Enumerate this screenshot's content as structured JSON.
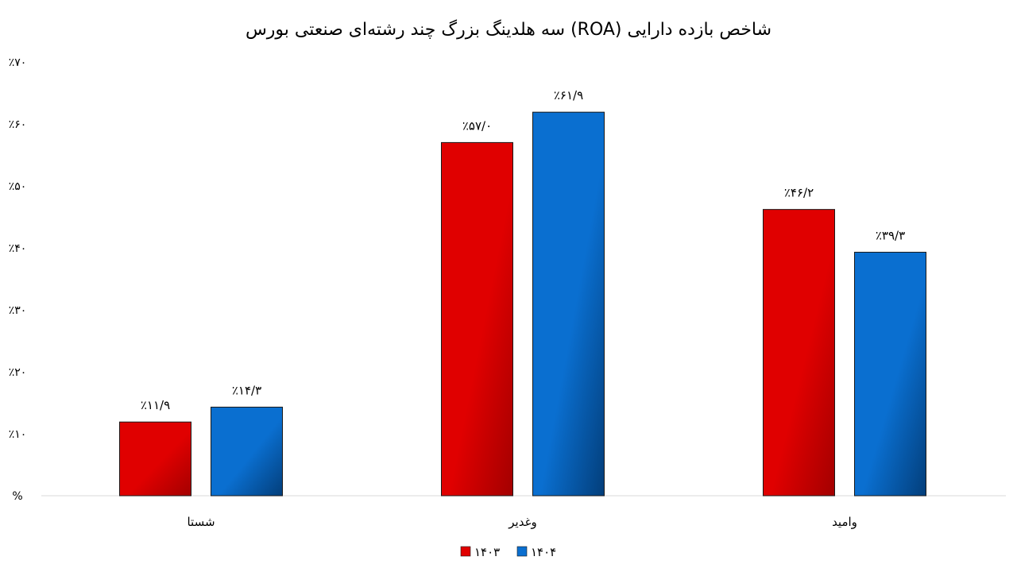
{
  "chart_data": {
    "type": "bar",
    "title": "شاخص بازده دارایی (ROA) سه هلدینگ بزرگ چند رشته‌ای صنعتی بورس",
    "xlabel": "",
    "ylabel": "",
    "categories": [
      "شستا",
      "وغدیر",
      "وامید"
    ],
    "series": [
      {
        "name": "۱۴۰۳",
        "values": [
          11.9,
          57.0,
          46.2
        ],
        "labels": [
          "٪۱۱/۹",
          "٪۵۷/۰",
          "٪۴۶/۲"
        ],
        "color": "#e00000",
        "color_dark": "#a30000"
      },
      {
        "name": "۱۴۰۴",
        "values": [
          14.3,
          61.9,
          39.3
        ],
        "labels": [
          "٪۱۴/۳",
          "٪۶۱/۹",
          "٪۳۹/۳"
        ],
        "color": "#0a6fd0",
        "color_dark": "#033e7a"
      }
    ],
    "ylim": [
      0,
      70
    ],
    "yticks": [
      0,
      10,
      20,
      30,
      40,
      50,
      60,
      70
    ],
    "ytick_labels": [
      "%",
      "٪۱۰",
      "٪۲۰",
      "٪۳۰",
      "٪۴۰",
      "٪۵۰",
      "٪۶۰",
      "٪۷۰"
    ],
    "grid": false,
    "legend_position": "bottom-center"
  }
}
